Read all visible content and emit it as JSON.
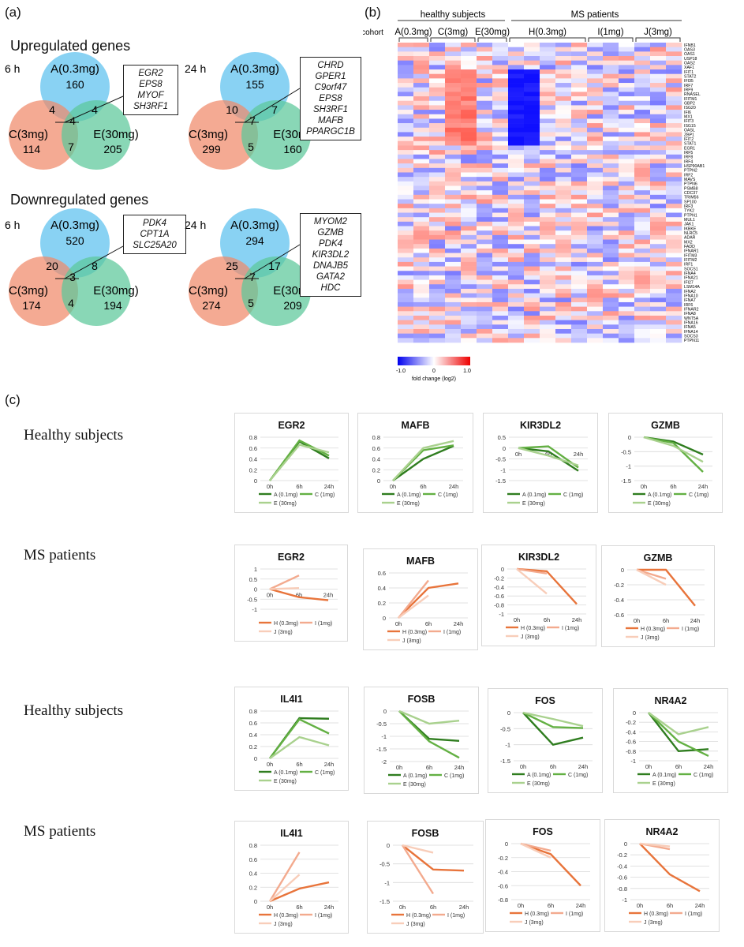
{
  "panels": {
    "a": "(a)",
    "b": "(b)",
    "c": "(c)"
  },
  "venn": {
    "up_title": "Upregulated genes",
    "down_title": "Downregulated genes",
    "set_a": "A(0.3mg)",
    "set_c": "C(3mg)",
    "set_e": "E(30mg)",
    "diagrams": [
      {
        "time": "6 h",
        "a": "160",
        "c": "114",
        "e": "205",
        "ac": "4",
        "ae": "4",
        "ce": "7",
        "ace": "4",
        "genes": [
          "EGR2",
          "EPS8",
          "MYOF",
          "SH3RF1"
        ]
      },
      {
        "time": "24 h",
        "a": "155",
        "c": "299",
        "e": "160",
        "ac": "10",
        "ae": "7",
        "ce": "5",
        "ace": "7",
        "genes": [
          "CHRD",
          "GPER1",
          "C9orf47",
          "EPS8",
          "SH3RF1",
          "MAFB",
          "PPARGC1B"
        ]
      },
      {
        "time": "6 h",
        "a": "520",
        "c": "174",
        "e": "194",
        "ac": "20",
        "ae": "8",
        "ce": "4",
        "ace": "3",
        "genes": [
          "PDK4",
          "CPT1A",
          "SLC25A20"
        ]
      },
      {
        "time": "24 h",
        "a": "294",
        "c": "274",
        "e": "209",
        "ac": "25",
        "ae": "17",
        "ce": "5",
        "ace": "7",
        "genes": [
          "MYOM2",
          "GZMB",
          "PDK4",
          "KIR3DL2",
          "DNAJB5",
          "GATA2",
          "HDC"
        ]
      }
    ],
    "colors": {
      "a": "#5bc0ee",
      "c": "#f0896a",
      "e": "#5cc79a"
    }
  },
  "heatmap": {
    "group_healthy": "healthy subjects",
    "group_ms": "MS patients",
    "cohort_label": "cohort",
    "cohorts": [
      {
        "name": "A(0.3mg)",
        "cols": 2
      },
      {
        "name": "C(3mg)",
        "cols": 3
      },
      {
        "name": "E(30mg)",
        "cols": 2
      },
      {
        "name": "H(0.3mg)",
        "cols": 5
      },
      {
        "name": "I(1mg)",
        "cols": 3
      },
      {
        "name": "J(3mg)",
        "cols": 3
      }
    ],
    "genes": [
      "IFNB1",
      "OAS3",
      "OAS1",
      "USP18",
      "OAS2",
      "XAF1",
      "IFIT1",
      "STAT2",
      "IFI35",
      "IRF7",
      "IRF9",
      "RNASEL",
      "IFITM1",
      "GBP2",
      "ISG20",
      "IFI6",
      "MX1",
      "IFIT3",
      "ISG15",
      "OASL",
      "ZBP1",
      "IFIT2",
      "STAT1",
      "EGR1",
      "IRF5",
      "IRF8",
      "IRF4",
      "HSP90AB1",
      "PTPN2",
      "IRF2",
      "MAVS",
      "PTPN6",
      "PSMB8",
      "CDC37",
      "TRIM56",
      "SP100",
      "IRF3",
      "TYK2",
      "PTPN1",
      "MUL1",
      "JAK1",
      "IKBKE",
      "NLRC5",
      "ADAR",
      "MX2",
      "FADD",
      "IFNAR1",
      "IFITM3",
      "IFITM2",
      "IRF1",
      "SOCS1",
      "IFNA4",
      "IFNA21",
      "IFI27",
      "LSM14A",
      "IFNA2",
      "IFNA10",
      "IFNA7",
      "IRF6",
      "IFNAR2",
      "IFNA8",
      "WNT5A",
      "IFNA16",
      "IFNA5",
      "IFNA14",
      "SOCS3",
      "PTPN11"
    ],
    "scale_min": "-1.0",
    "scale_mid": "0",
    "scale_max": "1.0",
    "scale_label": "fold change (log2)"
  },
  "rows": [
    {
      "label": "Healthy subjects"
    },
    {
      "label": "MS patients"
    },
    {
      "label": "Healthy subjects"
    },
    {
      "label": "MS patients"
    }
  ],
  "line_charts": [
    {
      "title": "EGR2",
      "type": "line",
      "x": [
        "0h",
        "6h",
        "24h"
      ],
      "ylim": [
        0,
        0.8
      ],
      "yticks": [
        "0",
        "0.2",
        "0.4",
        "0.6",
        "0.8"
      ],
      "legend": [
        "A (0.1mg)",
        "C (1mg)",
        "E (30mg)"
      ],
      "series": [
        {
          "name": "A (0.1mg)",
          "values": [
            0,
            0.72,
            0.41
          ]
        },
        {
          "name": "C (1mg)",
          "values": [
            0,
            0.74,
            0.46
          ]
        },
        {
          "name": "E (30mg)",
          "values": [
            0,
            0.66,
            0.52
          ]
        }
      ]
    },
    {
      "title": "MAFB",
      "type": "line",
      "x": [
        "0h",
        "6h",
        "24h"
      ],
      "ylim": [
        0,
        0.8
      ],
      "yticks": [
        "0",
        "0.2",
        "0.4",
        "0.6",
        "0.8"
      ],
      "legend": [
        "A (0.1mg)",
        "C (1mg)",
        "E (30mg)"
      ],
      "series": [
        {
          "name": "A (0.1mg)",
          "values": [
            0,
            0.4,
            0.64
          ]
        },
        {
          "name": "C (1mg)",
          "values": [
            0,
            0.56,
            0.65
          ]
        },
        {
          "name": "E (30mg)",
          "values": [
            0,
            0.6,
            0.73
          ]
        }
      ]
    },
    {
      "title": "KIR3DL2",
      "type": "line",
      "x": [
        "0h",
        "6h",
        "24h"
      ],
      "ylim": [
        -1.5,
        0.5
      ],
      "yticks": [
        "-1.5",
        "-1",
        "-0.5",
        "0",
        "0.5"
      ],
      "legend": [
        "A (0.1mg)",
        "C (1mg)",
        "E (30mg)"
      ],
      "series": [
        {
          "name": "A (0.1mg)",
          "values": [
            0,
            -0.15,
            -1.05
          ]
        },
        {
          "name": "C (1mg)",
          "values": [
            0,
            0.08,
            -0.9
          ]
        },
        {
          "name": "E (30mg)",
          "values": [
            0,
            -0.35,
            -0.8
          ]
        }
      ]
    },
    {
      "title": "GZMB",
      "type": "line",
      "x": [
        "0h",
        "6h",
        "24h"
      ],
      "ylim": [
        -1.5,
        0
      ],
      "yticks": [
        "-1.5",
        "-1",
        "-0.5",
        "0"
      ],
      "legend": [
        "A (0.1mg)",
        "C (1mg)",
        "E (30mg)"
      ],
      "series": [
        {
          "name": "A (0.1mg)",
          "values": [
            0,
            -0.15,
            -0.6
          ]
        },
        {
          "name": "C (1mg)",
          "values": [
            0,
            -0.2,
            -1.2
          ]
        },
        {
          "name": "E (30mg)",
          "values": [
            0,
            -0.3,
            -0.85
          ]
        }
      ]
    },
    {
      "title": "EGR2",
      "type": "line",
      "x": [
        "0h",
        "6h",
        "24h"
      ],
      "ylim": [
        -1,
        1
      ],
      "yticks": [
        "-1",
        "-0.5",
        "0",
        "0.5",
        "1"
      ],
      "legend": [
        "H (0.3mg)",
        "I (1mg)",
        "J (3mg)"
      ],
      "series": [
        {
          "name": "H (0.3mg)",
          "values": [
            0,
            -0.4,
            -0.55
          ]
        },
        {
          "name": "I (1mg)",
          "values": [
            0,
            0.68,
            null
          ]
        },
        {
          "name": "J (3mg)",
          "values": [
            0,
            0.05,
            null
          ]
        }
      ]
    },
    {
      "title": "MAFB",
      "type": "line",
      "x": [
        "0h",
        "6h",
        "24h"
      ],
      "ylim": [
        0,
        0.6
      ],
      "yticks": [
        "0",
        "0.2",
        "0.4",
        "0.6"
      ],
      "legend": [
        "H (0.3mg)",
        "I (1mg)",
        "J (3mg)"
      ],
      "series": [
        {
          "name": "H (0.3mg)",
          "values": [
            0,
            0.4,
            0.46
          ]
        },
        {
          "name": "I (1mg)",
          "values": [
            0,
            0.5,
            null
          ]
        },
        {
          "name": "J (3mg)",
          "values": [
            0,
            0.3,
            null
          ]
        }
      ]
    },
    {
      "title": "KIR3DL2",
      "type": "line",
      "x": [
        "0h",
        "6h",
        "24h"
      ],
      "ylim": [
        -1,
        0
      ],
      "yticks": [
        "-1",
        "-0.8",
        "-0.6",
        "-0.4",
        "-0.2",
        "0"
      ],
      "legend": [
        "H (0.3mg)",
        "I (1mg)",
        "J (3mg)"
      ],
      "series": [
        {
          "name": "H (0.3mg)",
          "values": [
            0,
            -0.05,
            -0.78
          ]
        },
        {
          "name": "I (1mg)",
          "values": [
            0,
            -0.1,
            null
          ]
        },
        {
          "name": "J (3mg)",
          "values": [
            0,
            -0.55,
            null
          ]
        }
      ]
    },
    {
      "title": "GZMB",
      "type": "line",
      "x": [
        "0h",
        "6h",
        "24h"
      ],
      "ylim": [
        -0.6,
        0
      ],
      "yticks": [
        "-0.6",
        "-0.4",
        "-0.2",
        "0"
      ],
      "legend": [
        "H (0.3mg)",
        "I (1mg)",
        "J (3mg)"
      ],
      "series": [
        {
          "name": "H (0.3mg)",
          "values": [
            0,
            0,
            -0.48
          ]
        },
        {
          "name": "I (1mg)",
          "values": [
            0,
            -0.12,
            null
          ]
        },
        {
          "name": "J (3mg)",
          "values": [
            0,
            -0.2,
            null
          ]
        }
      ]
    },
    {
      "title": "IL4I1",
      "type": "line",
      "x": [
        "0h",
        "6h",
        "24h"
      ],
      "ylim": [
        0,
        0.8
      ],
      "yticks": [
        "0",
        "0.2",
        "0.4",
        "0.6",
        "0.8"
      ],
      "legend": [
        "A (0.1mg)",
        "C (1mg)",
        "E (30mg)"
      ],
      "series": [
        {
          "name": "A (0.1mg)",
          "values": [
            0,
            0.68,
            0.67
          ]
        },
        {
          "name": "C (1mg)",
          "values": [
            0,
            0.66,
            0.42
          ]
        },
        {
          "name": "E (30mg)",
          "values": [
            0,
            0.36,
            0.22
          ]
        }
      ]
    },
    {
      "title": "FOSB",
      "type": "line",
      "x": [
        "0h",
        "6h",
        "24h"
      ],
      "ylim": [
        -2,
        0
      ],
      "yticks": [
        "-2",
        "-1.5",
        "-1",
        "-0.5",
        "0"
      ],
      "legend": [
        "A (0.1mg)",
        "C (1mg)",
        "E (30mg)"
      ],
      "series": [
        {
          "name": "A (0.1mg)",
          "values": [
            0,
            -1.1,
            -1.18
          ]
        },
        {
          "name": "C (1mg)",
          "values": [
            0,
            -1.2,
            -1.85
          ]
        },
        {
          "name": "E (30mg)",
          "values": [
            0,
            -0.5,
            -0.38
          ]
        }
      ]
    },
    {
      "title": "FOS",
      "type": "line",
      "x": [
        "0h",
        "6h",
        "24h"
      ],
      "ylim": [
        -1.5,
        0
      ],
      "yticks": [
        "-1.5",
        "-1",
        "-0.5",
        "0"
      ],
      "legend": [
        "A (0.1mg)",
        "C (1mg)",
        "E (30mg)"
      ],
      "series": [
        {
          "name": "A (0.1mg)",
          "values": [
            0,
            -1.0,
            -0.78
          ]
        },
        {
          "name": "C (1mg)",
          "values": [
            0,
            -0.45,
            -0.48
          ]
        },
        {
          "name": "E (30mg)",
          "values": [
            0,
            -0.2,
            -0.42
          ]
        }
      ]
    },
    {
      "title": "NR4A2",
      "type": "line",
      "x": [
        "0h",
        "6h",
        "24h"
      ],
      "ylim": [
        -1,
        0
      ],
      "yticks": [
        "-1",
        "-0.8",
        "-0.6",
        "-0.4",
        "-0.2",
        "0"
      ],
      "legend": [
        "A (0.1mg)",
        "C (1mg)",
        "E (30mg)"
      ],
      "series": [
        {
          "name": "A (0.1mg)",
          "values": [
            0,
            -0.8,
            -0.76
          ]
        },
        {
          "name": "C (1mg)",
          "values": [
            0,
            -0.6,
            -0.9
          ]
        },
        {
          "name": "E (30mg)",
          "values": [
            0,
            -0.45,
            -0.3
          ]
        }
      ]
    },
    {
      "title": "IL4I1",
      "type": "line",
      "x": [
        "0h",
        "6h",
        "24h"
      ],
      "ylim": [
        0,
        0.8
      ],
      "yticks": [
        "0",
        "0.2",
        "0.4",
        "0.6",
        "0.8"
      ],
      "legend": [
        "H (0.3mg)",
        "I (1mg)",
        "J (3mg)"
      ],
      "series": [
        {
          "name": "H (0.3mg)",
          "values": [
            0,
            0.18,
            0.27
          ]
        },
        {
          "name": "I (1mg)",
          "values": [
            0,
            0.7,
            null
          ]
        },
        {
          "name": "J (3mg)",
          "values": [
            0,
            0.38,
            null
          ]
        }
      ]
    },
    {
      "title": "FOSB",
      "type": "line",
      "x": [
        "0h",
        "6h",
        "24h"
      ],
      "ylim": [
        -1.5,
        0
      ],
      "yticks": [
        "-1.5",
        "-1",
        "-0.5",
        "0"
      ],
      "legend": [
        "H (0.3mg)",
        "I (1mg)",
        "J (3mg)"
      ],
      "series": [
        {
          "name": "H (0.3mg)",
          "values": [
            0,
            -0.65,
            -0.68
          ]
        },
        {
          "name": "I (1mg)",
          "values": [
            0,
            -1.3,
            null
          ]
        },
        {
          "name": "J (3mg)",
          "values": [
            0,
            -0.2,
            null
          ]
        }
      ]
    },
    {
      "title": "FOS",
      "type": "line",
      "x": [
        "0h",
        "6h",
        "24h"
      ],
      "ylim": [
        -0.8,
        0
      ],
      "yticks": [
        "-0.8",
        "-0.6",
        "-0.4",
        "-0.2",
        "0"
      ],
      "legend": [
        "H (0.3mg)",
        "I (1mg)",
        "J (3mg)"
      ],
      "series": [
        {
          "name": "H (0.3mg)",
          "values": [
            0,
            -0.15,
            -0.6
          ]
        },
        {
          "name": "I (1mg)",
          "values": [
            0,
            -0.1,
            null
          ]
        },
        {
          "name": "J (3mg)",
          "values": [
            0,
            -0.2,
            null
          ]
        }
      ]
    },
    {
      "title": "NR4A2",
      "type": "line",
      "x": [
        "0h",
        "6h",
        "24h"
      ],
      "ylim": [
        -1,
        0
      ],
      "yticks": [
        "-1",
        "-0.8",
        "-0.6",
        "-0.4",
        "-0.2",
        "0"
      ],
      "legend": [
        "H (0.3mg)",
        "I (1mg)",
        "J (3mg)"
      ],
      "series": [
        {
          "name": "H (0.3mg)",
          "values": [
            0,
            -0.55,
            -0.85
          ]
        },
        {
          "name": "I (1mg)",
          "values": [
            0,
            -0.1,
            null
          ]
        },
        {
          "name": "J (3mg)",
          "values": [
            0,
            -0.05,
            null
          ]
        }
      ]
    }
  ],
  "palettes": {
    "healthy": [
      "#2f7d1f",
      "#63b043",
      "#a9d18e"
    ],
    "ms": [
      "#e8743b",
      "#f3aa8e",
      "#f8cdb9"
    ]
  }
}
